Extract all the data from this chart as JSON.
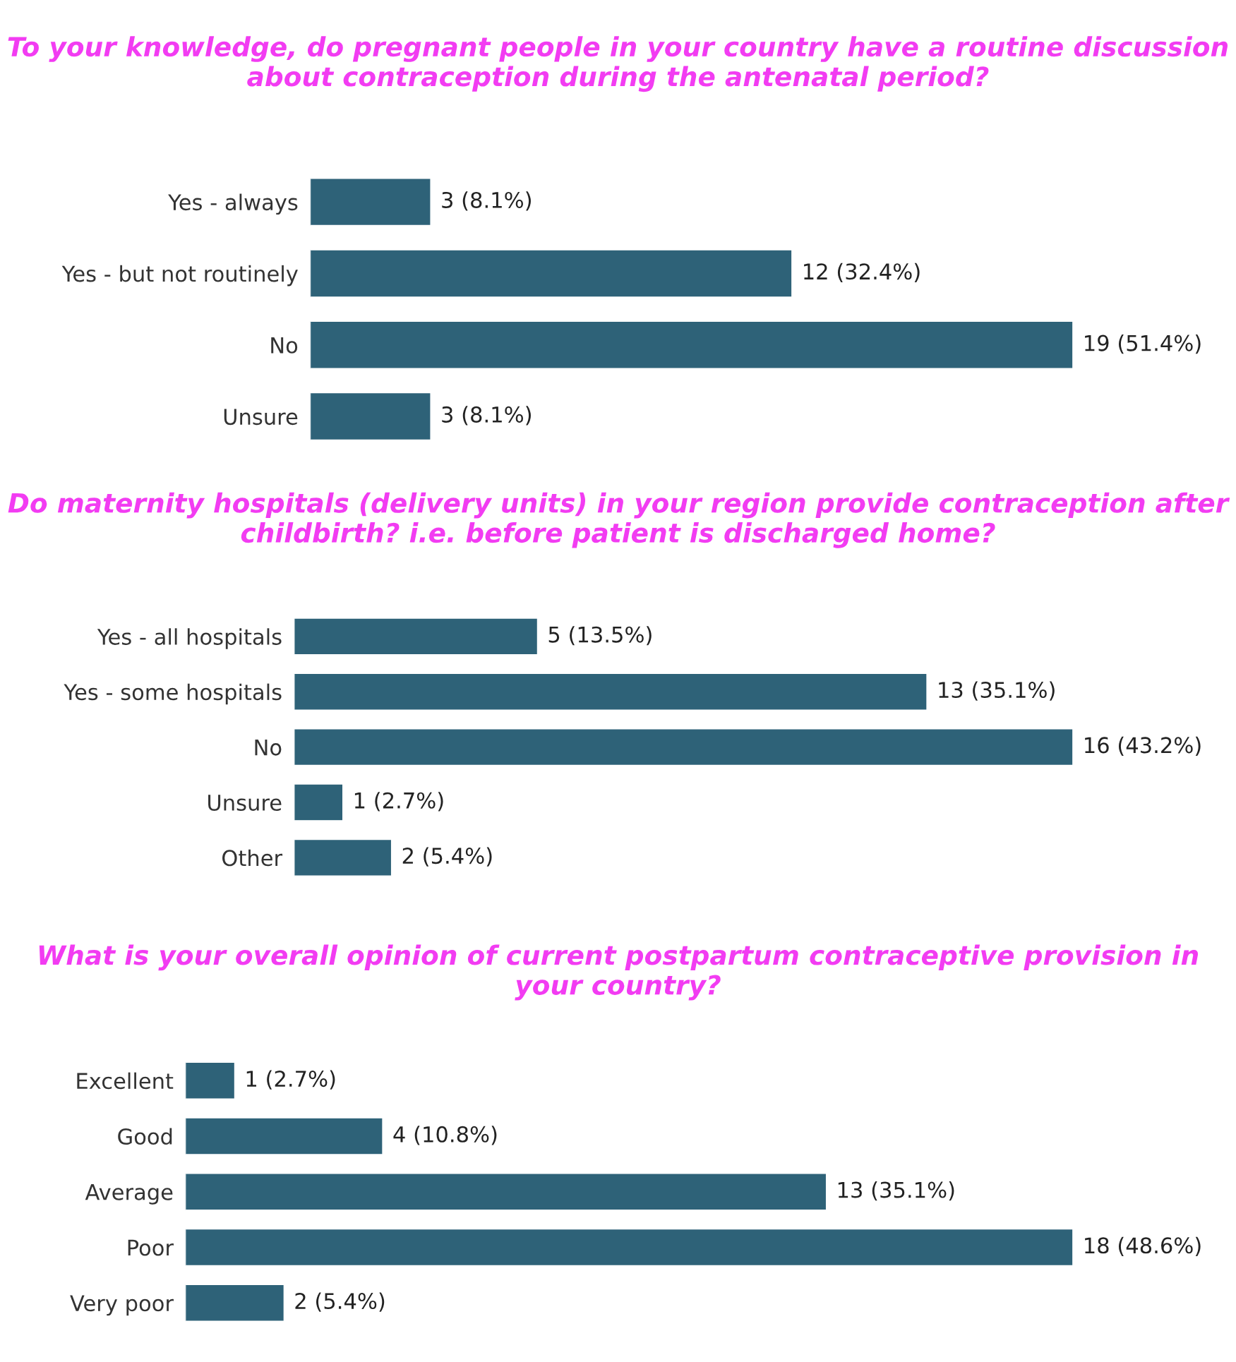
{
  "chart_data": [
    {
      "type": "bar",
      "orientation": "horizontal",
      "title": "To your knowledge, do pregnant people in your country have a routine discussion about contraception during the antenatal period?",
      "categories": [
        "Yes - always",
        "Yes - but not routinely",
        "No",
        "Unsure"
      ],
      "values": [
        3,
        12,
        19,
        3
      ],
      "color": "#2e6278",
      "value_labels": [
        "3 (8.1%)",
        "12 (32.4%)",
        "19 (51.4%)",
        "3 (8.1%)"
      ]
    },
    {
      "type": "bar",
      "orientation": "horizontal",
      "title": "Do maternity hospitals (delivery units) in your region provide contraception after childbirth? i.e. before patient is discharged home?",
      "categories": [
        "Yes - all hospitals",
        "Yes - some hospitals",
        "No",
        "Unsure",
        "Other"
      ],
      "values": [
        5,
        13,
        16,
        1,
        2
      ],
      "color": "#2e6278",
      "value_labels": [
        "5 (13.5%)",
        "13 (35.1%)",
        "16 (43.2%)",
        "1 (2.7%)",
        "2 (5.4%)"
      ]
    },
    {
      "type": "bar",
      "orientation": "horizontal",
      "title": "What is your overall opinion of current postpartum contraceptive provision in your country?",
      "categories": [
        "Excellent",
        "Good",
        "Average",
        "Poor",
        "Very poor"
      ],
      "values": [
        1,
        4,
        13,
        18,
        2
      ],
      "color": "#2e6278",
      "value_labels": [
        "1 (2.7%)",
        "4 (10.8%)",
        "13 (35.1%)",
        "18 (48.6%)",
        "2 (5.4%)"
      ]
    }
  ]
}
